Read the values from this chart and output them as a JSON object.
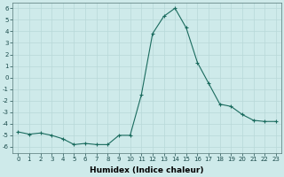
{
  "x": [
    0,
    1,
    2,
    3,
    4,
    5,
    6,
    7,
    8,
    9,
    10,
    11,
    12,
    13,
    14,
    15,
    16,
    17,
    18,
    19,
    20,
    21,
    22,
    23
  ],
  "y": [
    -4.7,
    -4.9,
    -4.8,
    -5.0,
    -5.3,
    -5.8,
    -5.7,
    -5.8,
    -5.8,
    -5.0,
    -5.0,
    -1.5,
    3.8,
    5.3,
    6.0,
    4.3,
    1.3,
    -0.5,
    -2.3,
    -2.5,
    -3.2,
    -3.7,
    -3.8,
    -3.8
  ],
  "line_color": "#1a6b5e",
  "marker": "+",
  "marker_size": 3,
  "bg_color": "#ceeaea",
  "grid_color": "#b8d8d8",
  "xlabel": "Humidex (Indice chaleur)",
  "xlim": [
    -0.5,
    23.5
  ],
  "ylim": [
    -6.5,
    6.5
  ],
  "yticks": [
    -6,
    -5,
    -4,
    -3,
    -2,
    -1,
    0,
    1,
    2,
    3,
    4,
    5,
    6
  ],
  "xticks": [
    0,
    1,
    2,
    3,
    4,
    5,
    6,
    7,
    8,
    9,
    10,
    11,
    12,
    13,
    14,
    15,
    16,
    17,
    18,
    19,
    20,
    21,
    22,
    23
  ],
  "xtick_labels": [
    "0",
    "1",
    "2",
    "3",
    "4",
    "5",
    "6",
    "7",
    "8",
    "9",
    "10",
    "11",
    "12",
    "13",
    "14",
    "15",
    "16",
    "17",
    "18",
    "19",
    "20",
    "21",
    "22",
    "23"
  ],
  "xlabel_fontsize": 6.5,
  "tick_fontsize": 5.0,
  "xlabel_fontweight": "bold",
  "linewidth": 0.8,
  "markeredgewidth": 0.8
}
